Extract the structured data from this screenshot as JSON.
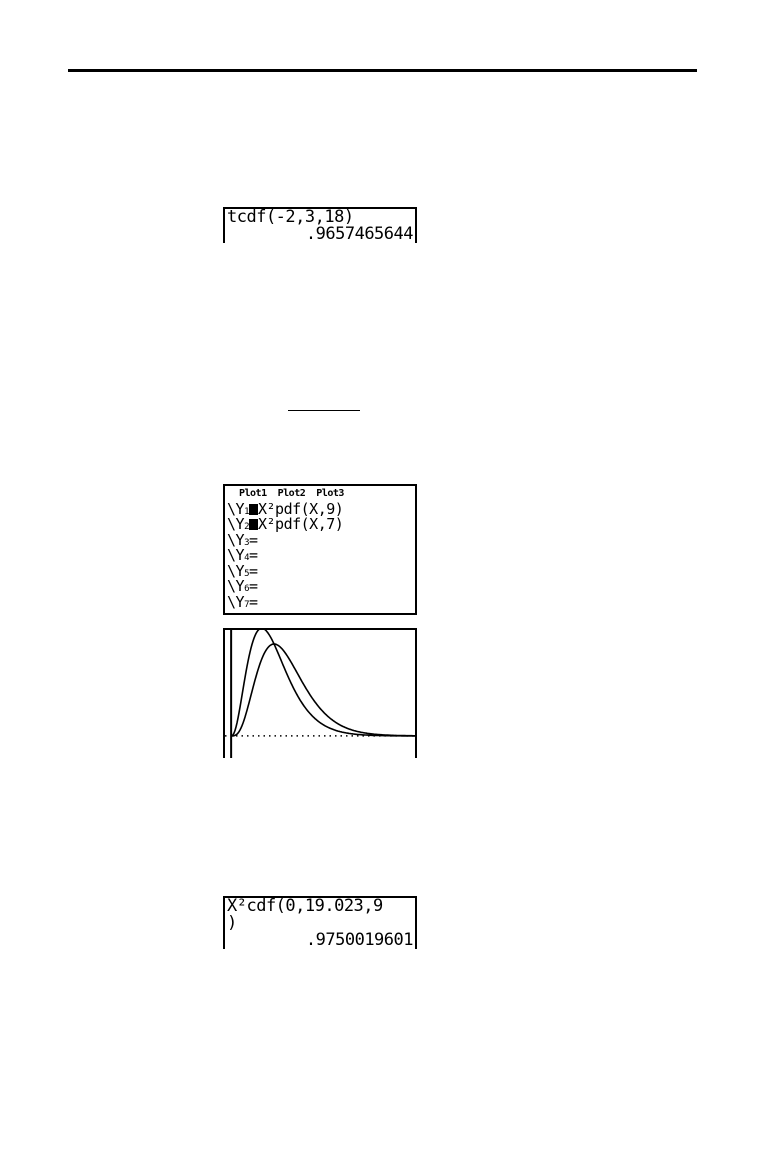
{
  "screen1": {
    "lines": [
      "tcdf(-2,3,18)",
      ".9657465644"
    ]
  },
  "screen2": {
    "plots": "Plot1  Plot2  Plot3",
    "rows": [
      {
        "label": "Y",
        "sub": "1",
        "selected": true,
        "expr": "X²pdf(X,9)"
      },
      {
        "label": "Y",
        "sub": "2",
        "selected": true,
        "expr": "X²pdf(X,7)"
      },
      {
        "label": "Y",
        "sub": "3",
        "selected": false,
        "expr": ""
      },
      {
        "label": "Y",
        "sub": "4",
        "selected": false,
        "expr": ""
      },
      {
        "label": "Y",
        "sub": "5",
        "selected": false,
        "expr": ""
      },
      {
        "label": "Y",
        "sub": "6",
        "selected": false,
        "expr": ""
      },
      {
        "label": "Y",
        "sub": "7",
        "selected": false,
        "expr": ""
      }
    ]
  },
  "graph": {
    "type": "line",
    "series": [
      {
        "function": "X²pdf(X,9)",
        "df": 9
      },
      {
        "function": "X²pdf(X,7)",
        "df": 7
      }
    ]
  },
  "screen3": {
    "lines": [
      "X²cdf(0,19.023,9",
      ")",
      ".9750019601"
    ]
  }
}
